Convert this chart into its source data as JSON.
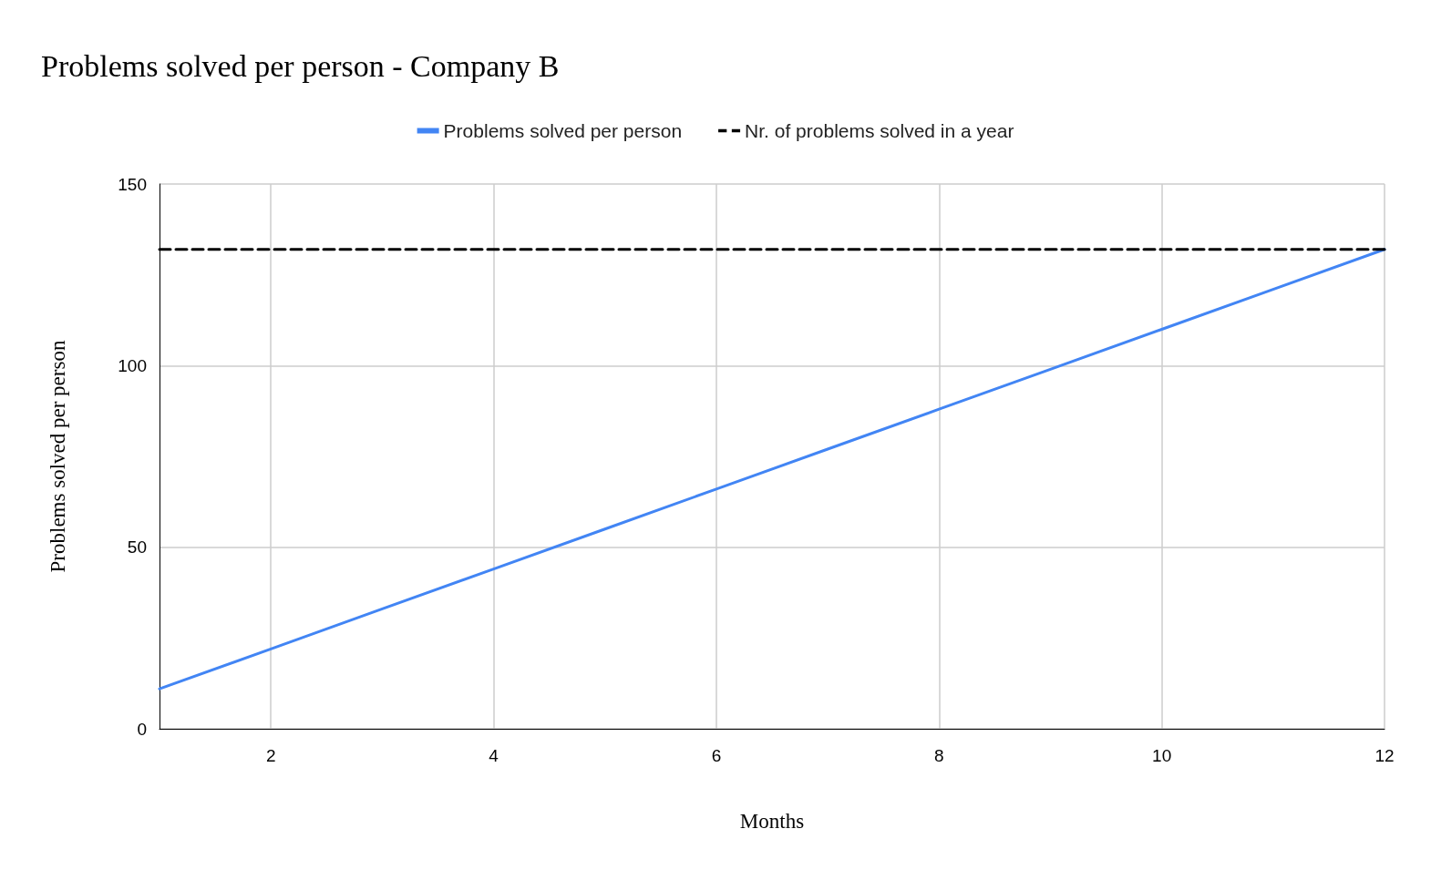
{
  "chart_data": {
    "type": "line",
    "title": "Problems solved per person - Company B",
    "xlabel": "Months",
    "ylabel": "Problems solved per person",
    "x": [
      1,
      2,
      3,
      4,
      5,
      6,
      7,
      8,
      9,
      10,
      11,
      12
    ],
    "series": [
      {
        "name": "Problems solved per person",
        "color": "#4285f4",
        "line_style": "solid",
        "values": [
          11,
          22,
          33,
          44,
          55,
          66,
          77,
          88,
          99,
          110,
          121,
          132
        ]
      },
      {
        "name": "Nr. of problems solved in a year",
        "color": "#000000",
        "line_style": "dashed",
        "values": [
          132,
          132,
          132,
          132,
          132,
          132,
          132,
          132,
          132,
          132,
          132,
          132
        ]
      }
    ],
    "xlim": [
      1,
      12
    ],
    "xticks": [
      2,
      4,
      6,
      8,
      10,
      12
    ],
    "ylim": [
      0,
      150
    ],
    "yticks": [
      0,
      50,
      100,
      150
    ],
    "grid": true,
    "legend": "top",
    "marker": "none"
  }
}
